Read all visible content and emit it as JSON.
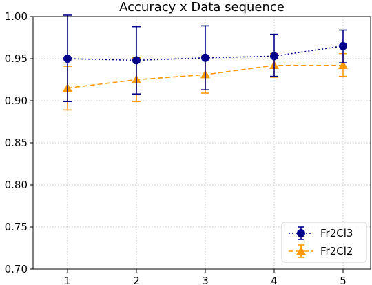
{
  "chart_data": {
    "type": "line",
    "title": "Accuracy x Data sequence",
    "xlabel": "",
    "ylabel": "",
    "x": [
      1,
      2,
      3,
      4,
      5
    ],
    "x_ticks": [
      "1",
      "2",
      "3",
      "4",
      "5"
    ],
    "ylim": [
      0.7,
      1.0
    ],
    "y_ticks": [
      "0.70",
      "0.75",
      "0.80",
      "0.85",
      "0.90",
      "0.95",
      "1.00"
    ],
    "grid": true,
    "legend_position": "bottom-right",
    "series": [
      {
        "name": "Fr2Cl3",
        "color": "#00008b",
        "marker": "circle",
        "line_style": "dotted",
        "values": [
          0.95,
          0.948,
          0.951,
          0.953,
          0.965
        ],
        "error_low": [
          0.899,
          0.908,
          0.913,
          0.929,
          0.945
        ],
        "error_high": [
          1.005,
          0.988,
          0.989,
          0.979,
          0.984
        ]
      },
      {
        "name": "Fr2Cl2",
        "color": "#ff9900",
        "marker": "triangle",
        "line_style": "dashed",
        "values": [
          0.915,
          0.925,
          0.931,
          0.942,
          0.942
        ],
        "error_low": [
          0.889,
          0.899,
          0.909,
          0.928,
          0.929
        ],
        "error_high": [
          0.941,
          0.951,
          0.953,
          0.956,
          0.956
        ]
      }
    ]
  }
}
